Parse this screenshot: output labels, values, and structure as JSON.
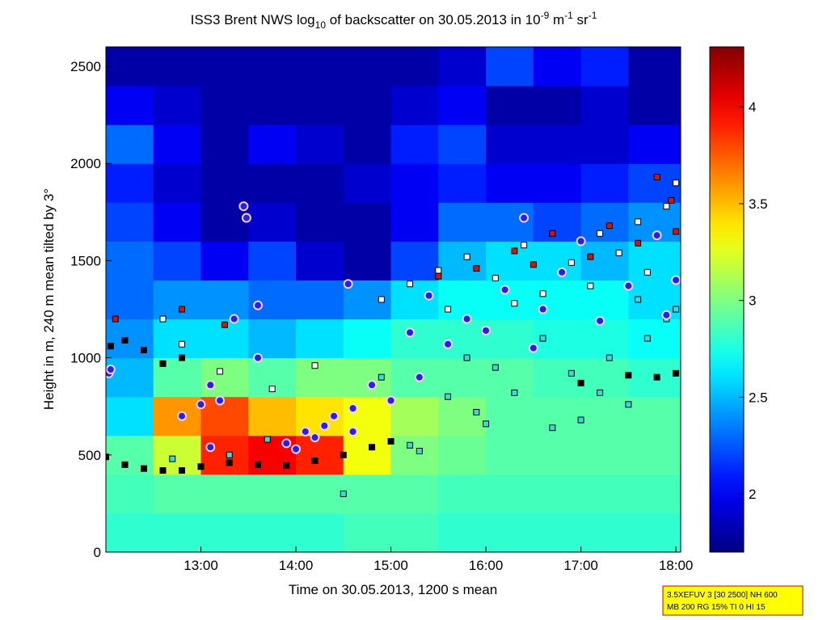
{
  "chart_data": {
    "type": "heatmap",
    "title": [
      "ISS3 Brent NWS log",
      "10",
      " of backscatter on 30.05.2013 in 10",
      "-9",
      " m",
      "-1",
      " sr",
      "-1"
    ],
    "xlabel": "Time on 30.05.2013, 1200 s mean",
    "ylabel": "Height in m, 240 m mean tilted by 3°",
    "annotation": [
      "3.5XEFUV 3 [30 2500] NH 600",
      "MB 200 RG 15% TI 0 HI 15"
    ],
    "xlim": [
      12.0,
      18.05
    ],
    "xticks": [
      {
        "value": 13,
        "label": "13:00"
      },
      {
        "value": 14,
        "label": "14:00"
      },
      {
        "value": 15,
        "label": "15:00"
      },
      {
        "value": 16,
        "label": "16:00"
      },
      {
        "value": 17,
        "label": "17:00"
      },
      {
        "value": 18,
        "label": "18:00"
      }
    ],
    "ylim": [
      0,
      2600
    ],
    "yticks": [
      0,
      500,
      1000,
      1500,
      2000,
      2500
    ],
    "clim": [
      1.7,
      4.31
    ],
    "cticks": [
      2,
      2.5,
      3,
      3.5,
      4
    ],
    "colormap": "jet",
    "x": [
      12.25,
      12.75,
      13.25,
      13.75,
      14.25,
      14.75,
      15.25,
      15.75,
      16.25,
      16.75,
      17.25,
      17.75
    ],
    "y": [
      100,
      300,
      500,
      700,
      900,
      1100,
      1300,
      1500,
      1700,
      1900,
      2100,
      2300,
      2500
    ],
    "z": [
      [
        2.8,
        2.8,
        2.8,
        2.8,
        2.8,
        2.85,
        2.85,
        2.8,
        2.8,
        2.8,
        2.8,
        2.8
      ],
      [
        2.85,
        2.9,
        2.9,
        2.9,
        2.9,
        2.9,
        2.9,
        2.85,
        2.85,
        2.85,
        2.85,
        2.85
      ],
      [
        2.9,
        3.2,
        3.9,
        4.0,
        3.9,
        3.3,
        3.0,
        2.95,
        2.9,
        2.9,
        2.9,
        2.9
      ],
      [
        2.6,
        3.6,
        3.8,
        3.5,
        3.4,
        3.3,
        3.1,
        3.0,
        2.9,
        2.9,
        2.9,
        2.9
      ],
      [
        2.5,
        2.9,
        3.0,
        2.9,
        3.0,
        3.0,
        2.9,
        2.9,
        2.9,
        2.85,
        2.85,
        2.8
      ],
      [
        2.4,
        2.6,
        2.6,
        2.5,
        2.6,
        2.7,
        2.8,
        2.8,
        2.8,
        2.75,
        2.75,
        2.7
      ],
      [
        2.3,
        2.4,
        2.4,
        2.3,
        2.3,
        2.4,
        2.6,
        2.7,
        2.7,
        2.7,
        2.7,
        2.6
      ],
      [
        2.3,
        2.2,
        2.0,
        2.2,
        1.9,
        1.8,
        2.2,
        2.5,
        2.6,
        2.6,
        2.5,
        2.6
      ],
      [
        2.2,
        2.0,
        1.8,
        1.9,
        1.8,
        1.8,
        2.0,
        2.3,
        2.3,
        2.2,
        2.3,
        2.4
      ],
      [
        2.1,
        1.9,
        1.8,
        1.8,
        1.8,
        1.9,
        2.0,
        2.1,
        2.0,
        2.0,
        2.1,
        2.2
      ],
      [
        2.3,
        2.0,
        1.8,
        2.0,
        1.9,
        1.8,
        2.1,
        2.2,
        1.9,
        1.9,
        1.9,
        2.0
      ],
      [
        2.0,
        1.9,
        1.8,
        1.8,
        1.8,
        1.8,
        1.9,
        2.0,
        1.8,
        1.8,
        1.9,
        1.8
      ],
      [
        1.8,
        1.8,
        1.8,
        1.8,
        1.8,
        1.8,
        1.8,
        1.9,
        2.2,
        2.0,
        2.1,
        1.8
      ]
    ],
    "series": [
      {
        "marker": "square",
        "color": "#000000",
        "edge": "#000000",
        "x": [
          12.0,
          12.2,
          12.4,
          12.6,
          12.8,
          13.0,
          13.3,
          13.6,
          13.9,
          14.2,
          14.5,
          14.8,
          15.0,
          12.05,
          12.2,
          12.4,
          12.6,
          12.8,
          17.0,
          17.5,
          17.8,
          18.0
        ],
        "y": [
          490,
          450,
          430,
          420,
          420,
          440,
          460,
          450,
          445,
          470,
          500,
          540,
          570,
          1060,
          1090,
          1040,
          970,
          1000,
          870,
          910,
          900,
          920
        ]
      },
      {
        "marker": "square",
        "color": "#33dddd",
        "edge": "#000000",
        "x": [
          12.7,
          13.3,
          13.7,
          14.5,
          15.2,
          15.3,
          15.6,
          15.9,
          16.3,
          16.7,
          16.9,
          17.0,
          17.3,
          17.5,
          17.7,
          17.9,
          18.0,
          16.1,
          15.8,
          16.6,
          17.2,
          14.9,
          16.0,
          17.6
        ],
        "y": [
          480,
          500,
          580,
          300,
          550,
          520,
          800,
          720,
          820,
          640,
          920,
          680,
          1000,
          760,
          1100,
          1200,
          1250,
          950,
          1000,
          1100,
          820,
          900,
          660,
          1300
        ]
      },
      {
        "marker": "square",
        "color": "#ffffff",
        "edge": "#000000",
        "x": [
          12.6,
          12.8,
          13.2,
          13.75,
          14.2,
          14.9,
          15.2,
          15.5,
          15.8,
          16.1,
          16.4,
          16.6,
          16.9,
          17.2,
          17.4,
          17.6,
          17.9,
          18.0,
          17.7,
          16.3,
          15.6,
          17.1
        ],
        "y": [
          1200,
          1070,
          930,
          840,
          960,
          1300,
          1380,
          1450,
          1520,
          1410,
          1580,
          1330,
          1490,
          1640,
          1540,
          1700,
          1780,
          1900,
          1440,
          1280,
          1250,
          1370
        ]
      },
      {
        "marker": "square",
        "color": "#dd1100",
        "edge": "#000000",
        "x": [
          12.1,
          12.8,
          13.25,
          15.5,
          15.9,
          16.3,
          16.7,
          17.1,
          17.3,
          17.6,
          17.8,
          17.95,
          18.0,
          16.5
        ],
        "y": [
          1200,
          1250,
          1170,
          1420,
          1460,
          1550,
          1640,
          1520,
          1680,
          1590,
          1930,
          1810,
          1650,
          1480
        ]
      },
      {
        "marker": "circle",
        "color": "#2222ee",
        "edge": "#ffccee",
        "x": [
          12.03,
          12.05,
          12.8,
          13.0,
          13.1,
          13.2,
          13.45,
          13.48,
          13.35,
          13.6,
          13.6,
          13.9,
          14.0,
          14.1,
          14.2,
          14.3,
          14.4,
          14.55,
          14.6,
          14.8,
          15.0,
          15.2,
          15.4,
          15.6,
          15.8,
          16.0,
          16.2,
          16.4,
          16.6,
          16.8,
          17.0,
          17.2,
          17.5,
          17.8,
          17.9,
          18.0,
          13.1,
          14.6,
          15.3,
          16.5
        ],
        "y": [
          920,
          940,
          700,
          760,
          860,
          780,
          1780,
          1720,
          1200,
          1270,
          1000,
          560,
          530,
          620,
          590,
          650,
          700,
          1380,
          740,
          860,
          780,
          1130,
          1320,
          1070,
          1200,
          1140,
          1350,
          1720,
          1250,
          1440,
          1600,
          1190,
          1370,
          1630,
          1220,
          1400,
          540,
          620,
          900,
          1050
        ]
      }
    ]
  }
}
